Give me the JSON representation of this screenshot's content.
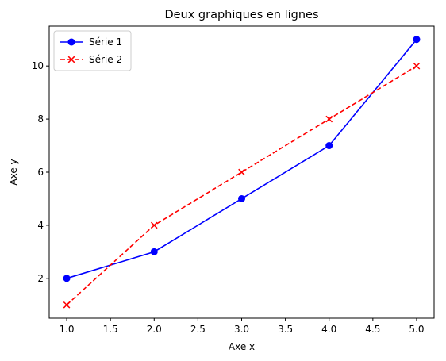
{
  "chart_data": {
    "type": "line",
    "title": "Deux graphiques en lignes",
    "xlabel": "Axe x",
    "ylabel": "Axe y",
    "xlim": [
      0.8,
      5.2
    ],
    "ylim": [
      0.5,
      11.5
    ],
    "xticks": [
      1.0,
      1.5,
      2.0,
      2.5,
      3.0,
      3.5,
      4.0,
      4.5,
      5.0
    ],
    "xtick_labels": [
      "1.0",
      "1.5",
      "2.0",
      "2.5",
      "3.0",
      "3.5",
      "4.0",
      "4.5",
      "5.0"
    ],
    "yticks": [
      2,
      4,
      6,
      8,
      10
    ],
    "ytick_labels": [
      "2",
      "4",
      "6",
      "8",
      "10"
    ],
    "grid": false,
    "legend_position": "top-left",
    "x": [
      1,
      2,
      3,
      4,
      5
    ],
    "series": [
      {
        "name": "Série 1",
        "values": [
          2,
          3,
          5,
          7,
          11
        ],
        "color": "#0000ff",
        "line_style": "solid",
        "marker": "circle"
      },
      {
        "name": "Série 2",
        "values": [
          1,
          4,
          6,
          8,
          10
        ],
        "color": "#ff0000",
        "line_style": "dashed",
        "marker": "x"
      }
    ]
  }
}
